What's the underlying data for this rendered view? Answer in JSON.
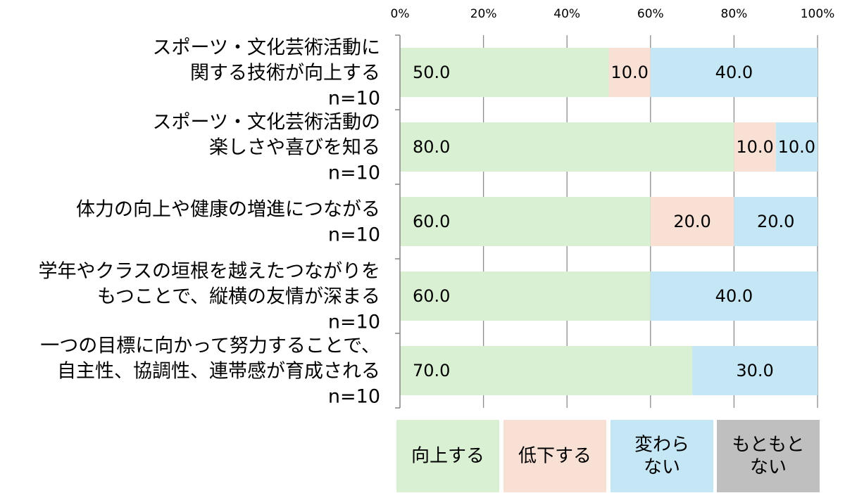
{
  "chart_data": {
    "type": "bar",
    "orientation": "horizontal",
    "stacked": true,
    "percent_scale": true,
    "x_ticks": [
      "0%",
      "20%",
      "40%",
      "60%",
      "80%",
      "100%"
    ],
    "xlim": [
      0,
      100
    ],
    "grid": true,
    "legend_position": "bottom",
    "categories": [
      [
        "スポーツ・文化芸術活動に",
        "関する技術が向上する",
        "n=10"
      ],
      [
        "スポーツ・文化芸術活動の",
        "楽しさや喜びを知る",
        "n=10"
      ],
      [
        "体力の向上や健康の増進につながる",
        "n=10"
      ],
      [
        "学年やクラスの垣根を越えたつながりを",
        "もつことで、縦横の友情が深まる",
        "n=10"
      ],
      [
        "一つの目標に向かって努力することで、",
        "自主性、協調性、連帯感が育成される",
        "n=10"
      ]
    ],
    "series": [
      {
        "name": "向上する",
        "legend_lines": [
          "向上する"
        ],
        "color": "#d9f0d2",
        "values": [
          50.0,
          80.0,
          60.0,
          60.0,
          70.0
        ]
      },
      {
        "name": "低下する",
        "legend_lines": [
          "低下する"
        ],
        "color": "#f9e0d5",
        "values": [
          10.0,
          10.0,
          20.0,
          0,
          0
        ]
      },
      {
        "name": "変わらない",
        "legend_lines": [
          "変わら",
          "ない"
        ],
        "color": "#c5e6f4",
        "values": [
          40.0,
          10.0,
          20.0,
          40.0,
          30.0
        ]
      },
      {
        "name": "もともとない",
        "legend_lines": [
          "もともと",
          "ない"
        ],
        "color": "#bfbfbf",
        "values": [
          0,
          0,
          0,
          0,
          0
        ]
      }
    ]
  }
}
